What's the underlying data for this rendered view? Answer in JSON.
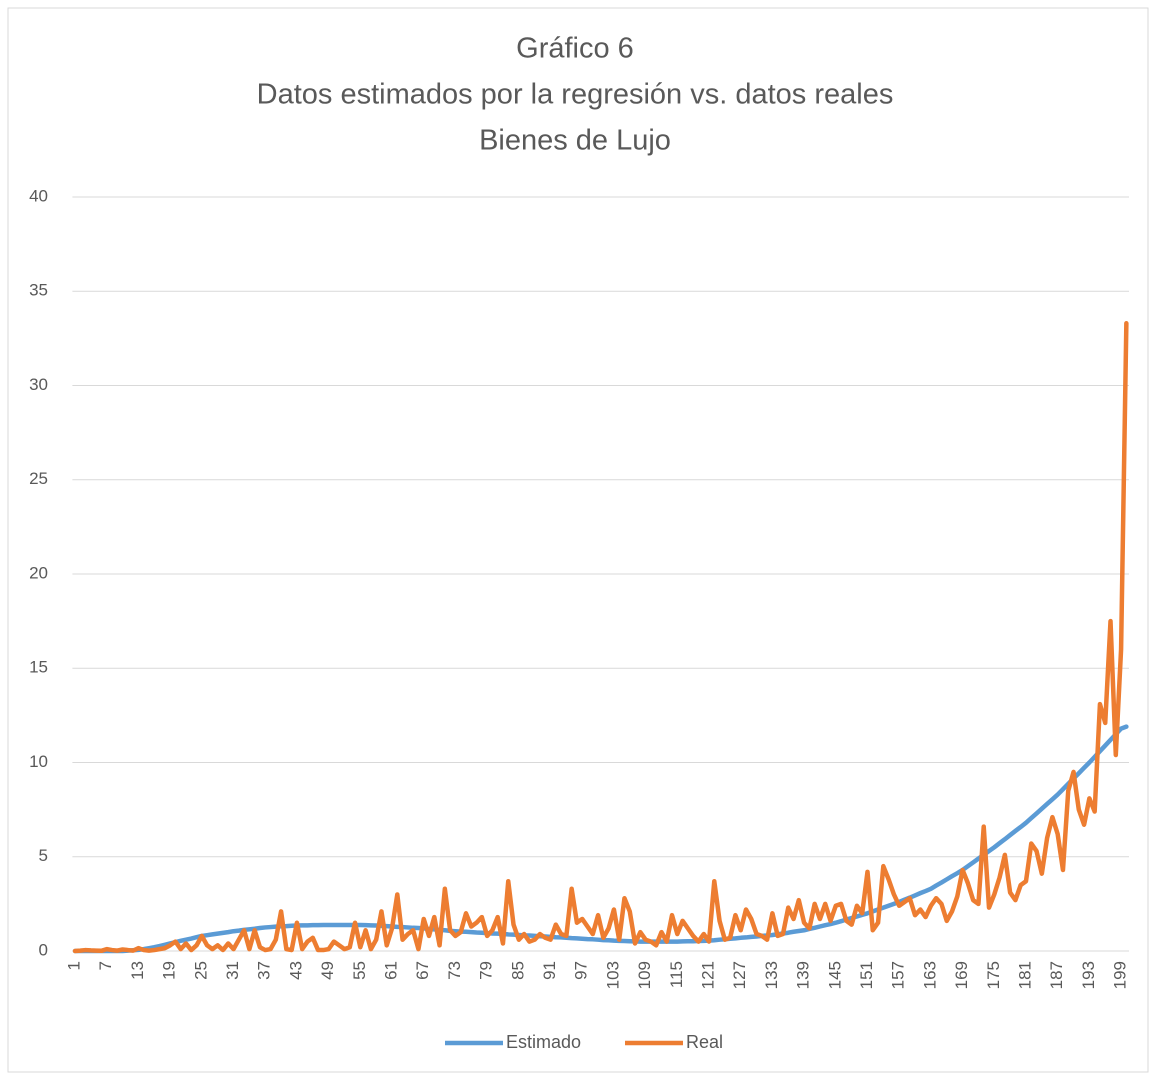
{
  "chart_data": {
    "type": "line",
    "title": [
      "Gráfico 6",
      "Datos estimados por la regresión vs. datos reales",
      "Bienes de Lujo"
    ],
    "categories": [
      "1",
      null,
      null,
      null,
      null,
      null,
      "7",
      null,
      null,
      null,
      null,
      null,
      "13",
      null,
      null,
      null,
      null,
      null,
      "19",
      null,
      null,
      null,
      null,
      null,
      "25",
      null,
      null,
      null,
      null,
      null,
      "31",
      null,
      null,
      null,
      null,
      null,
      "37",
      null,
      null,
      null,
      null,
      null,
      "43",
      null,
      null,
      null,
      null,
      null,
      "49",
      null,
      null,
      null,
      null,
      null,
      "55",
      null,
      null,
      null,
      null,
      null,
      "61",
      null,
      null,
      null,
      null,
      null,
      "67",
      null,
      null,
      null,
      null,
      null,
      "73",
      null,
      null,
      null,
      null,
      null,
      "79",
      null,
      null,
      null,
      null,
      null,
      "85",
      null,
      null,
      null,
      null,
      null,
      "91",
      null,
      null,
      null,
      null,
      null,
      "97",
      null,
      null,
      null,
      null,
      null,
      "103",
      null,
      null,
      null,
      null,
      null,
      "109",
      null,
      null,
      null,
      null,
      null,
      "115",
      null,
      null,
      null,
      null,
      null,
      "121",
      null,
      null,
      null,
      null,
      null,
      "127",
      null,
      null,
      null,
      null,
      null,
      "133",
      null,
      null,
      null,
      null,
      null,
      "139",
      null,
      null,
      null,
      null,
      null,
      "145",
      null,
      null,
      null,
      null,
      null,
      "151",
      null,
      null,
      null,
      null,
      null,
      "157",
      null,
      null,
      null,
      null,
      null,
      "163",
      null,
      null,
      null,
      null,
      null,
      "169",
      null,
      null,
      null,
      null,
      null,
      "175",
      null,
      null,
      null,
      null,
      null,
      "181",
      null,
      null,
      null,
      null,
      null,
      "187",
      null,
      null,
      null,
      null,
      null,
      "193",
      null,
      null,
      null,
      null,
      null,
      "199",
      null
    ],
    "series": [
      {
        "name": "Estimado",
        "color": "#5b9bd5",
        "values": [
          0,
          0,
          0,
          0,
          0,
          0,
          0,
          0,
          0,
          0,
          0.02,
          0.04,
          0.06,
          0.1,
          0.15,
          0.2,
          0.26,
          0.33,
          0.4,
          0.47,
          0.54,
          0.6,
          0.66,
          0.73,
          0.8,
          0.84,
          0.88,
          0.92,
          0.96,
          1.0,
          1.05,
          1.08,
          1.12,
          1.15,
          1.18,
          1.22,
          1.25,
          1.27,
          1.29,
          1.31,
          1.32,
          1.34,
          1.35,
          1.36,
          1.36,
          1.37,
          1.37,
          1.38,
          1.38,
          1.38,
          1.38,
          1.38,
          1.38,
          1.38,
          1.38,
          1.37,
          1.36,
          1.35,
          1.33,
          1.32,
          1.3,
          1.28,
          1.27,
          1.25,
          1.23,
          1.22,
          1.2,
          1.17,
          1.15,
          1.12,
          1.1,
          1.07,
          1.05,
          1.03,
          1.02,
          1.0,
          0.98,
          0.97,
          0.95,
          0.93,
          0.92,
          0.9,
          0.88,
          0.87,
          0.85,
          0.83,
          0.82,
          0.8,
          0.78,
          0.77,
          0.75,
          0.73,
          0.72,
          0.7,
          0.68,
          0.67,
          0.65,
          0.63,
          0.62,
          0.6,
          0.58,
          0.57,
          0.55,
          0.54,
          0.53,
          0.52,
          0.51,
          0.5,
          0.5,
          0.5,
          0.5,
          0.5,
          0.5,
          0.5,
          0.5,
          0.51,
          0.52,
          0.52,
          0.53,
          0.54,
          0.55,
          0.57,
          0.6,
          0.62,
          0.65,
          0.67,
          0.7,
          0.72,
          0.75,
          0.77,
          0.8,
          0.82,
          0.85,
          0.89,
          0.93,
          0.97,
          1.02,
          1.06,
          1.1,
          1.17,
          1.23,
          1.3,
          1.37,
          1.43,
          1.5,
          1.58,
          1.67,
          1.75,
          1.83,
          1.92,
          2.0,
          2.1,
          2.2,
          2.3,
          2.4,
          2.5,
          2.6,
          2.72,
          2.83,
          2.95,
          3.07,
          3.18,
          3.3,
          3.47,
          3.63,
          3.8,
          3.97,
          4.13,
          4.3,
          4.5,
          4.7,
          4.9,
          5.1,
          5.3,
          5.5,
          5.72,
          5.93,
          6.15,
          6.37,
          6.58,
          6.8,
          7.05,
          7.3,
          7.55,
          7.8,
          8.05,
          8.3,
          8.58,
          8.87,
          9.15,
          9.43,
          9.72,
          10.0,
          10.3,
          10.6,
          10.9,
          11.2,
          11.5,
          11.8,
          11.9
        ]
      },
      {
        "name": "Real",
        "color": "#ed7d31",
        "values": [
          0,
          0.02,
          0.05,
          0.03,
          0.02,
          0.01,
          0.1,
          0.05,
          0.02,
          0.08,
          0.05,
          0.02,
          0.15,
          0.05,
          0.02,
          0.05,
          0.1,
          0.15,
          0.3,
          0.5,
          0.1,
          0.4,
          0.05,
          0.3,
          0.8,
          0.3,
          0.1,
          0.3,
          0.05,
          0.4,
          0.1,
          0.6,
          1.1,
          0.1,
          1.1,
          0.2,
          0.05,
          0.1,
          0.6,
          2.1,
          0.1,
          0.05,
          1.5,
          0.1,
          0.5,
          0.7,
          0.05,
          0.05,
          0.1,
          0.5,
          0.3,
          0.1,
          0.2,
          1.5,
          0.2,
          1.1,
          0.1,
          0.6,
          2.1,
          0.3,
          1.2,
          3.0,
          0.6,
          0.9,
          1.1,
          0.1,
          1.7,
          0.8,
          1.8,
          0.3,
          3.3,
          1.1,
          0.8,
          1.0,
          2.0,
          1.3,
          1.5,
          1.8,
          0.8,
          1.1,
          1.8,
          0.4,
          3.7,
          1.4,
          0.6,
          0.9,
          0.5,
          0.6,
          0.9,
          0.7,
          0.6,
          1.4,
          0.9,
          0.8,
          3.3,
          1.5,
          1.7,
          1.3,
          0.9,
          1.9,
          0.7,
          1.2,
          2.2,
          0.6,
          2.8,
          2.1,
          0.4,
          1.0,
          0.6,
          0.5,
          0.3,
          1.0,
          0.5,
          1.9,
          0.9,
          1.6,
          1.2,
          0.8,
          0.5,
          0.9,
          0.5,
          3.7,
          1.6,
          0.6,
          0.7,
          1.9,
          1.1,
          2.2,
          1.7,
          0.9,
          0.8,
          0.6,
          2.0,
          0.8,
          0.9,
          2.3,
          1.7,
          2.7,
          1.5,
          1.2,
          2.5,
          1.7,
          2.5,
          1.6,
          2.4,
          2.5,
          1.6,
          1.4,
          2.4,
          2.0,
          4.2,
          1.1,
          1.5,
          4.5,
          3.8,
          3.0,
          2.4,
          2.6,
          2.8,
          1.9,
          2.2,
          1.8,
          2.4,
          2.8,
          2.5,
          1.6,
          2.1,
          2.9,
          4.3,
          3.6,
          2.7,
          2.5,
          6.6,
          2.3,
          3.0,
          3.9,
          5.1,
          3.1,
          2.7,
          3.5,
          3.7,
          5.7,
          5.3,
          4.1,
          6.0,
          7.1,
          6.2,
          4.3,
          8.5,
          9.5,
          7.5,
          6.7,
          8.1,
          7.4,
          13.1,
          12.1,
          17.5,
          10.4,
          16,
          33.3
        ]
      }
    ],
    "ylim": [
      0,
      40
    ],
    "yticks": [
      0,
      5,
      10,
      15,
      20,
      25,
      30,
      35,
      40
    ],
    "grid": true,
    "legend": "bottom"
  }
}
